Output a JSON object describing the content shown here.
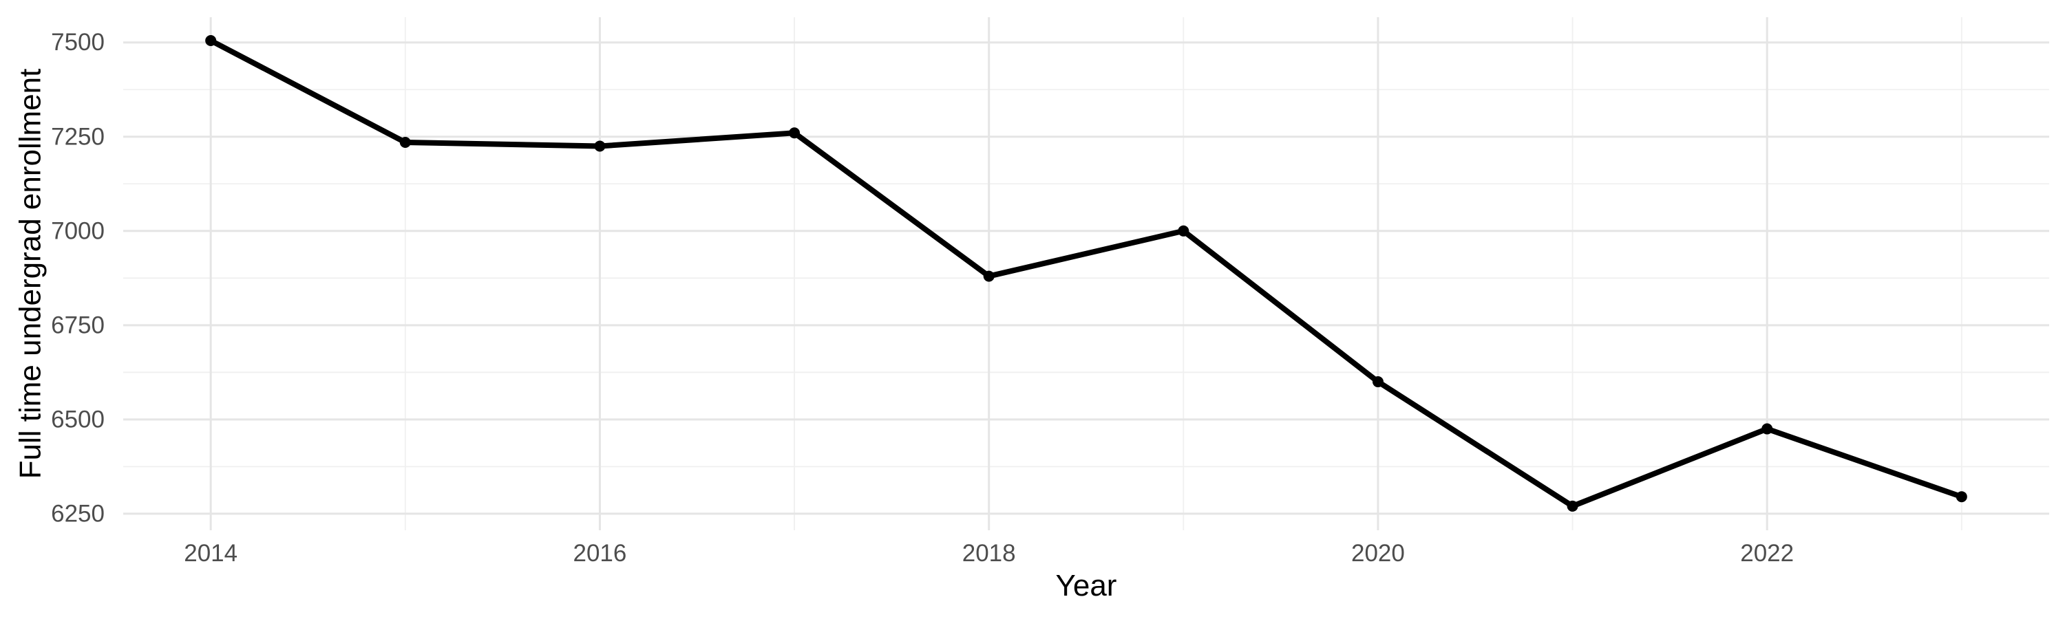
{
  "chart_data": {
    "type": "line",
    "title": "",
    "xlabel": "Year",
    "ylabel": "Full time undergrad enrollment",
    "x": [
      2014,
      2015,
      2016,
      2017,
      2018,
      2019,
      2020,
      2021,
      2022,
      2023
    ],
    "values": [
      7505,
      7235,
      7225,
      7260,
      6880,
      7000,
      6600,
      6270,
      6475,
      6295
    ],
    "series": [
      {
        "name": "Full time undergrad enrollment",
        "values": [
          7505,
          7235,
          7225,
          7260,
          6880,
          7000,
          6600,
          6270,
          6475,
          6295
        ]
      }
    ],
    "x_major_ticks": [
      2014,
      2016,
      2018,
      2020,
      2022
    ],
    "x_tick_labels": [
      "2014",
      "2016",
      "2018",
      "2020",
      "2022"
    ],
    "x_minor_gridlines": [
      2015,
      2017,
      2019,
      2021,
      2023
    ],
    "y_major_ticks": [
      7500,
      7250,
      7000,
      6750,
      6500,
      6250
    ],
    "y_tick_labels": [
      "7500",
      "7250",
      "7000",
      "6750",
      "6500",
      "6250"
    ],
    "y_minor_gridlines": [
      7375,
      7125,
      6875,
      6625,
      6375
    ],
    "xlim": [
      2013.55,
      2023.45
    ],
    "ylim": [
      6206,
      7567
    ],
    "grid": "major-and-minor",
    "legend": "none",
    "marker": "filled-circle",
    "colors": {
      "line": "#000000",
      "point": "#000000",
      "grid_major": "#E5E5E5",
      "grid_minor": "#F0F0F0",
      "tick_label": "#4D4D4D",
      "axis_title": "#000000",
      "background": "#FFFFFF"
    }
  }
}
